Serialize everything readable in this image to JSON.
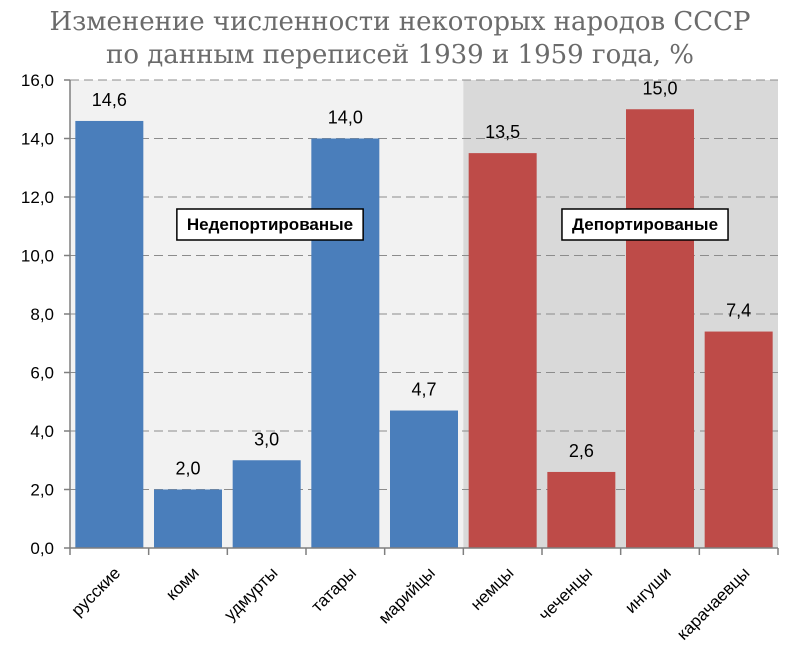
{
  "chart_data": {
    "type": "bar",
    "title": "Изменение численности некоторых народов СССР",
    "subtitle": "по данным переписей 1939 и 1959 года, %",
    "categories": [
      "русские",
      "коми",
      "удмурты",
      "татары",
      "марийцы",
      "немцы",
      "чеченцы",
      "ингуши",
      "карачаевцы"
    ],
    "values": [
      14.6,
      2.0,
      3.0,
      14.0,
      4.7,
      13.5,
      2.6,
      15.0,
      7.4
    ],
    "value_labels": [
      "14,6",
      "2,0",
      "3,0",
      "14,0",
      "4,7",
      "13,5",
      "2,6",
      "15,0",
      "7,4"
    ],
    "ylim": [
      0,
      16
    ],
    "yticks": [
      "0,0",
      "2,0",
      "4,0",
      "6,0",
      "8,0",
      "10,0",
      "12,0",
      "14,0",
      "16,0"
    ],
    "grid": true,
    "groups": [
      {
        "label": "Недепортированые",
        "start": 0,
        "end": 4,
        "bar_color": "#4a7ebb",
        "background": "#f2f2f2"
      },
      {
        "label": "Депортированые",
        "start": 5,
        "end": 8,
        "bar_color": "#be4b48",
        "background": "#d9d9d9"
      }
    ]
  }
}
